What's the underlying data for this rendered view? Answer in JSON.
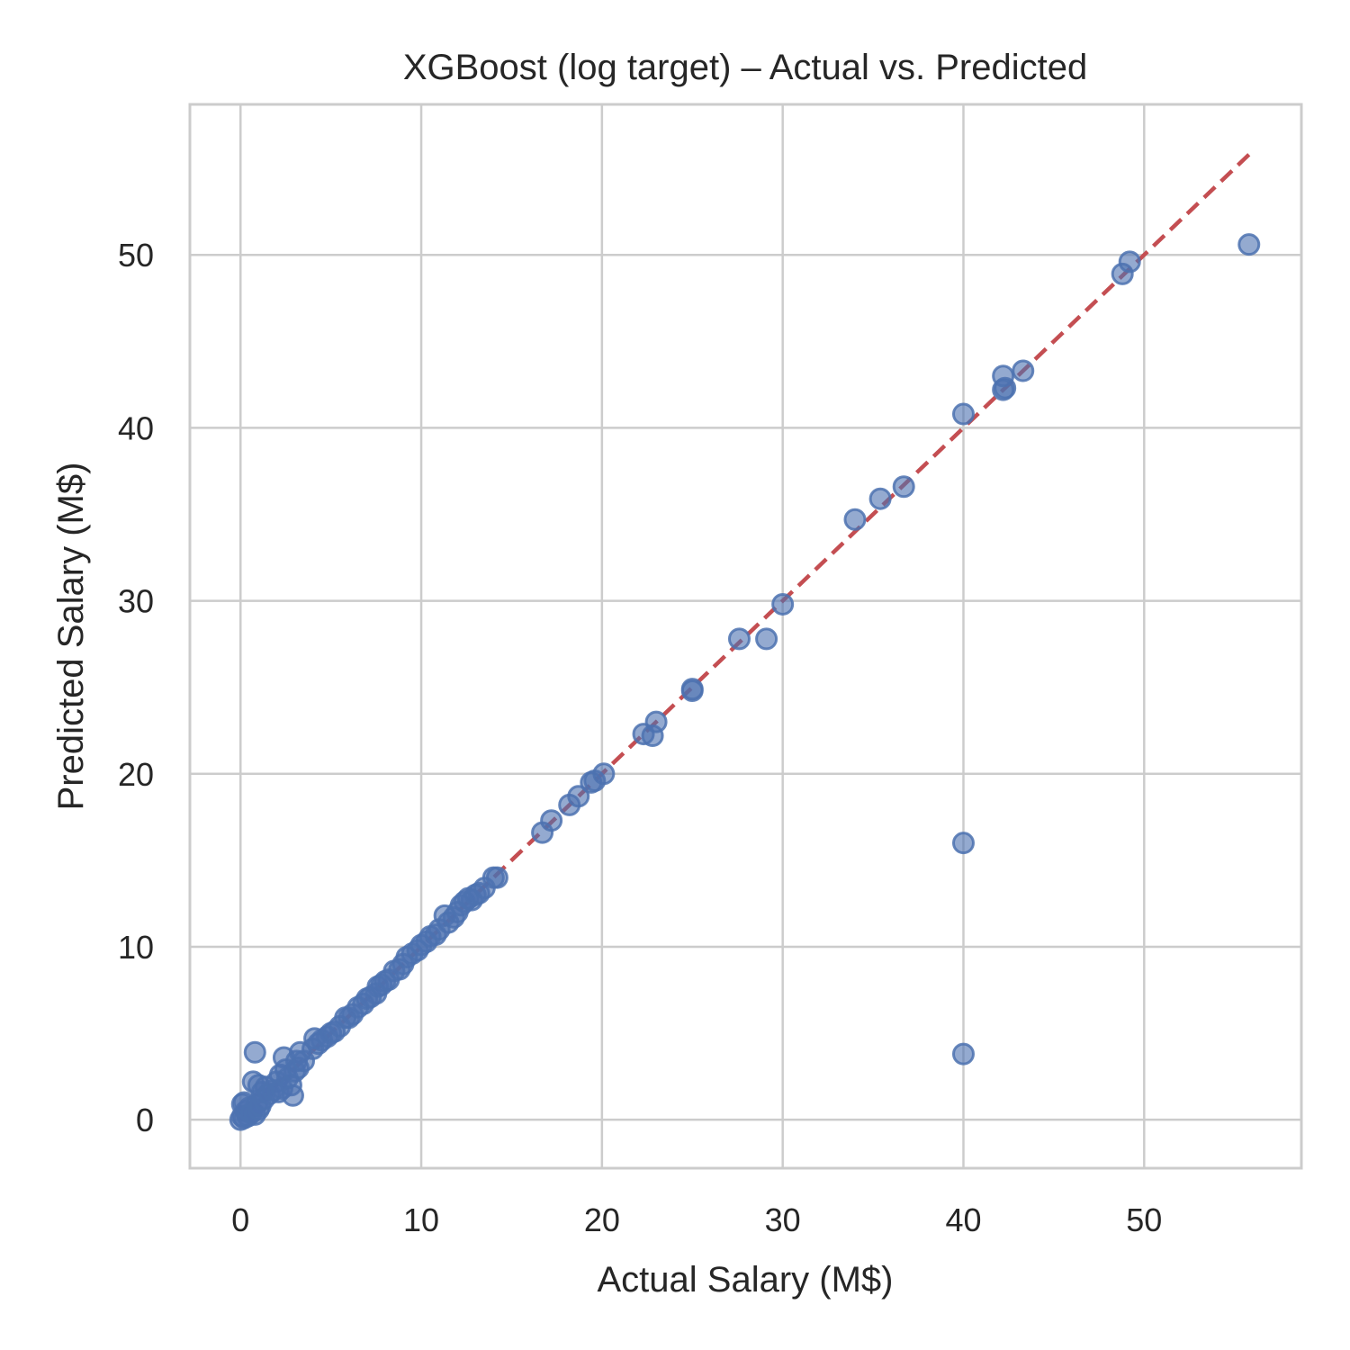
{
  "chart_data": {
    "type": "scatter",
    "title": "XGBoost (log target) – Actual vs. Predicted",
    "xlabel": "Actual Salary (M$)",
    "ylabel": "Predicted Salary (M$)",
    "xlim": [
      -2.8,
      58.7
    ],
    "ylim": [
      -2.8,
      58.7
    ],
    "xticks": [
      0,
      10,
      20,
      30,
      40,
      50
    ],
    "yticks": [
      0,
      10,
      20,
      30,
      40,
      50
    ],
    "grid": true,
    "colors": {
      "points": "#4c72b0",
      "reference": "#c44e52",
      "grid": "#cccccc"
    },
    "reference_line": {
      "style": "dashed",
      "from": [
        0,
        0
      ],
      "to": [
        55.8,
        55.8
      ]
    },
    "series": [
      {
        "points": [
          [
            0.0,
            0.0
          ],
          [
            0.1,
            0.2
          ],
          [
            0.2,
            0.1
          ],
          [
            0.3,
            0.5
          ],
          [
            0.1,
            0.9
          ],
          [
            0.4,
            0.2
          ],
          [
            0.5,
            0.7
          ],
          [
            0.2,
            1.0
          ],
          [
            0.6,
            0.4
          ],
          [
            0.8,
            0.3
          ],
          [
            0.9,
            0.9
          ],
          [
            1.0,
            0.6
          ],
          [
            1.1,
            0.8
          ],
          [
            1.3,
            1.2
          ],
          [
            0.8,
            3.9
          ],
          [
            0.7,
            2.2
          ],
          [
            1.0,
            2.0
          ],
          [
            1.2,
            1.6
          ],
          [
            1.4,
            1.9
          ],
          [
            1.6,
            1.5
          ],
          [
            1.8,
            1.7
          ],
          [
            2.0,
            2.2
          ],
          [
            2.1,
            1.6
          ],
          [
            2.2,
            2.6
          ],
          [
            2.3,
            1.8
          ],
          [
            2.4,
            3.6
          ],
          [
            2.5,
            2.9
          ],
          [
            2.6,
            2.4
          ],
          [
            2.8,
            2.0
          ],
          [
            2.9,
            1.4
          ],
          [
            3.0,
            2.8
          ],
          [
            3.1,
            3.4
          ],
          [
            3.2,
            3.0
          ],
          [
            3.3,
            3.9
          ],
          [
            3.5,
            3.4
          ],
          [
            4.0,
            4.1
          ],
          [
            4.1,
            4.7
          ],
          [
            4.3,
            4.4
          ],
          [
            4.5,
            4.6
          ],
          [
            4.8,
            4.8
          ],
          [
            5.0,
            5.0
          ],
          [
            5.2,
            5.1
          ],
          [
            5.5,
            5.4
          ],
          [
            5.8,
            5.9
          ],
          [
            6.0,
            5.9
          ],
          [
            6.2,
            6.1
          ],
          [
            6.5,
            6.5
          ],
          [
            6.8,
            6.7
          ],
          [
            7.0,
            7.0
          ],
          [
            7.2,
            7.1
          ],
          [
            7.5,
            7.3
          ],
          [
            7.6,
            7.7
          ],
          [
            7.8,
            7.8
          ],
          [
            8.0,
            8.0
          ],
          [
            8.2,
            8.1
          ],
          [
            8.5,
            8.6
          ],
          [
            8.8,
            8.7
          ],
          [
            9.0,
            9.0
          ],
          [
            9.2,
            9.4
          ],
          [
            9.5,
            9.6
          ],
          [
            9.8,
            9.8
          ],
          [
            10.0,
            10.1
          ],
          [
            10.3,
            10.3
          ],
          [
            10.5,
            10.6
          ],
          [
            10.8,
            10.7
          ],
          [
            11.0,
            11.0
          ],
          [
            11.3,
            11.8
          ],
          [
            11.5,
            11.4
          ],
          [
            11.8,
            11.7
          ],
          [
            12.0,
            12.0
          ],
          [
            12.2,
            12.4
          ],
          [
            12.4,
            12.6
          ],
          [
            12.6,
            12.8
          ],
          [
            12.8,
            12.7
          ],
          [
            13.0,
            13.0
          ],
          [
            13.2,
            13.1
          ],
          [
            13.5,
            13.4
          ],
          [
            14.0,
            14.0
          ],
          [
            14.2,
            14.0
          ],
          [
            16.7,
            16.6
          ],
          [
            17.2,
            17.3
          ],
          [
            18.2,
            18.2
          ],
          [
            18.7,
            18.7
          ],
          [
            19.4,
            19.5
          ],
          [
            19.6,
            19.6
          ],
          [
            20.1,
            20.0
          ],
          [
            22.3,
            22.3
          ],
          [
            22.8,
            22.2
          ],
          [
            23.0,
            23.0
          ],
          [
            25.0,
            24.9
          ],
          [
            25.0,
            24.8
          ],
          [
            27.6,
            27.8
          ],
          [
            29.1,
            27.8
          ],
          [
            30.0,
            29.8
          ],
          [
            34.0,
            34.7
          ],
          [
            35.4,
            35.9
          ],
          [
            36.7,
            36.6
          ],
          [
            40.0,
            40.8
          ],
          [
            42.2,
            43.0
          ],
          [
            42.2,
            42.2
          ],
          [
            42.3,
            42.3
          ],
          [
            43.3,
            43.3
          ],
          [
            48.8,
            48.9
          ],
          [
            49.2,
            49.6
          ],
          [
            55.8,
            50.6
          ],
          [
            40.0,
            16.0
          ],
          [
            40.0,
            3.8
          ]
        ]
      }
    ]
  }
}
